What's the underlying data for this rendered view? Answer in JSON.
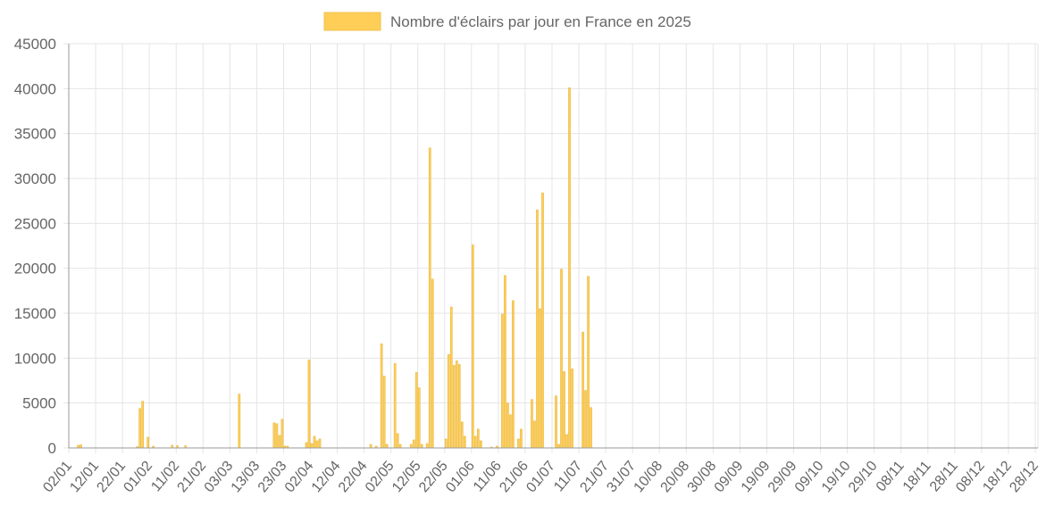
{
  "chart_data": {
    "type": "bar",
    "legend": {
      "label": "Nombre d'éclairs par jour en France en 2025",
      "position": "top-center",
      "color": "#ffce56"
    },
    "xaxis": {
      "start_date": "2025-01-02",
      "days": 361,
      "tick_labels": [
        "02/01",
        "12/01",
        "22/01",
        "01/02",
        "11/02",
        "21/02",
        "03/03",
        "13/03",
        "23/03",
        "02/04",
        "12/04",
        "22/04",
        "02/05",
        "12/05",
        "22/05",
        "01/06",
        "11/06",
        "21/06",
        "01/07",
        "11/07",
        "21/07",
        "31/07",
        "10/08",
        "20/08",
        "30/08",
        "09/09",
        "19/09",
        "29/09",
        "09/10",
        "19/10",
        "29/10",
        "08/11",
        "18/11",
        "28/11",
        "08/12",
        "18/12",
        "28/12"
      ]
    },
    "yaxis": {
      "min": 0,
      "max": 45000,
      "step": 5000,
      "tick_labels": [
        "0",
        "5000",
        "10000",
        "15000",
        "20000",
        "25000",
        "30000",
        "35000",
        "40000",
        "45000"
      ]
    },
    "grid": true,
    "bar_color": "#ffce56",
    "points": [
      {
        "date": "05/01",
        "value": 300
      },
      {
        "date": "06/01",
        "value": 350
      },
      {
        "date": "27/01",
        "value": 150
      },
      {
        "date": "28/01",
        "value": 4400
      },
      {
        "date": "29/01",
        "value": 5200
      },
      {
        "date": "31/01",
        "value": 1200
      },
      {
        "date": "02/02",
        "value": 200
      },
      {
        "date": "09/02",
        "value": 300
      },
      {
        "date": "11/02",
        "value": 250
      },
      {
        "date": "14/02",
        "value": 250
      },
      {
        "date": "06/03",
        "value": 6000
      },
      {
        "date": "19/03",
        "value": 2800
      },
      {
        "date": "20/03",
        "value": 2700
      },
      {
        "date": "21/03",
        "value": 1400
      },
      {
        "date": "22/03",
        "value": 3200
      },
      {
        "date": "23/03",
        "value": 200
      },
      {
        "date": "24/03",
        "value": 200
      },
      {
        "date": "31/03",
        "value": 600
      },
      {
        "date": "01/04",
        "value": 9800
      },
      {
        "date": "02/04",
        "value": 500
      },
      {
        "date": "03/04",
        "value": 1300
      },
      {
        "date": "04/04",
        "value": 800
      },
      {
        "date": "05/04",
        "value": 1000
      },
      {
        "date": "24/04",
        "value": 400
      },
      {
        "date": "26/04",
        "value": 200
      },
      {
        "date": "28/04",
        "value": 11600
      },
      {
        "date": "29/04",
        "value": 8000
      },
      {
        "date": "30/04",
        "value": 400
      },
      {
        "date": "03/05",
        "value": 9400
      },
      {
        "date": "04/05",
        "value": 1600
      },
      {
        "date": "05/05",
        "value": 400
      },
      {
        "date": "09/05",
        "value": 400
      },
      {
        "date": "10/05",
        "value": 900
      },
      {
        "date": "11/05",
        "value": 8400
      },
      {
        "date": "12/05",
        "value": 6700
      },
      {
        "date": "13/05",
        "value": 400
      },
      {
        "date": "15/05",
        "value": 500
      },
      {
        "date": "16/05",
        "value": 33400
      },
      {
        "date": "17/05",
        "value": 18800
      },
      {
        "date": "22/05",
        "value": 1000
      },
      {
        "date": "23/05",
        "value": 10400
      },
      {
        "date": "24/05",
        "value": 15700
      },
      {
        "date": "25/05",
        "value": 9200
      },
      {
        "date": "26/05",
        "value": 9700
      },
      {
        "date": "27/05",
        "value": 9300
      },
      {
        "date": "28/05",
        "value": 2900
      },
      {
        "date": "29/05",
        "value": 1300
      },
      {
        "date": "01/06",
        "value": 22600
      },
      {
        "date": "02/06",
        "value": 1300
      },
      {
        "date": "03/06",
        "value": 2100
      },
      {
        "date": "04/06",
        "value": 800
      },
      {
        "date": "08/06",
        "value": 100
      },
      {
        "date": "10/06",
        "value": 200
      },
      {
        "date": "12/06",
        "value": 14900
      },
      {
        "date": "13/06",
        "value": 19200
      },
      {
        "date": "14/06",
        "value": 5000
      },
      {
        "date": "15/06",
        "value": 3700
      },
      {
        "date": "16/06",
        "value": 16400
      },
      {
        "date": "18/06",
        "value": 1000
      },
      {
        "date": "19/06",
        "value": 2100
      },
      {
        "date": "23/06",
        "value": 5400
      },
      {
        "date": "24/06",
        "value": 3000
      },
      {
        "date": "25/06",
        "value": 26500
      },
      {
        "date": "26/06",
        "value": 15500
      },
      {
        "date": "27/06",
        "value": 28400
      },
      {
        "date": "02/07",
        "value": 5800
      },
      {
        "date": "03/07",
        "value": 400
      },
      {
        "date": "04/07",
        "value": 19900
      },
      {
        "date": "05/07",
        "value": 8500
      },
      {
        "date": "06/07",
        "value": 1500
      },
      {
        "date": "07/07",
        "value": 40100
      },
      {
        "date": "08/07",
        "value": 8800
      },
      {
        "date": "12/07",
        "value": 12900
      },
      {
        "date": "13/07",
        "value": 6400
      },
      {
        "date": "14/07",
        "value": 19100
      },
      {
        "date": "15/07",
        "value": 4500
      }
    ]
  }
}
